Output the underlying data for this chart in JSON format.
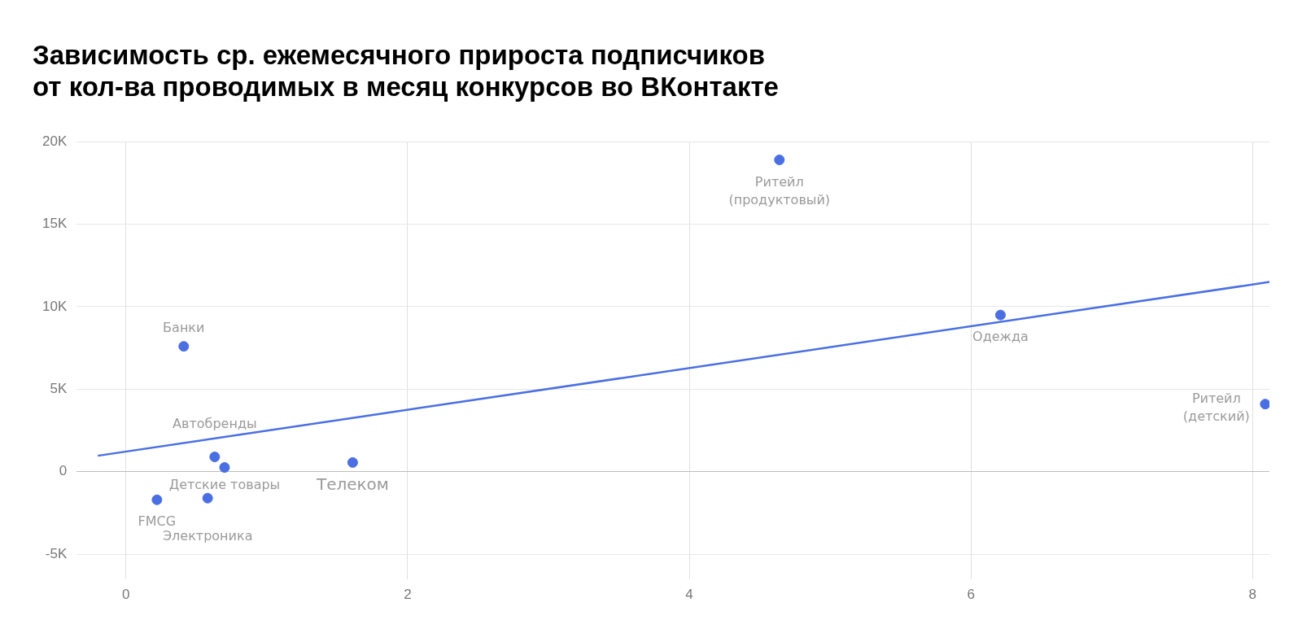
{
  "chart_data": {
    "type": "scatter",
    "title": "Зависимость ср. ежемесячного прироста подписчиков\nот кол-ва проводимых в месяц конкурсов во ВКонтакте",
    "series": [
      {
        "marker": "circle",
        "color": "#4a6fe3",
        "x": [
          0.41,
          0.63,
          0.7,
          1.61,
          0.22,
          0.58,
          4.64,
          6.21,
          8.09
        ],
        "values": [
          7600,
          900,
          260,
          560,
          -1700,
          -1600,
          18900,
          9500,
          4100
        ]
      },
      {
        "type": "line",
        "marker": "none",
        "color": "#4a6fe3",
        "x": [
          -0.2,
          8.12
        ],
        "values": [
          970,
          11500
        ]
      }
    ],
    "annotations": [
      {
        "text": "Банки",
        "x": 0.41,
        "y": 7600
      },
      {
        "text": "Автобренды",
        "x": 0.63,
        "y": 900
      },
      {
        "text": "Детские товары",
        "x": 0.7,
        "y": 260
      },
      {
        "text": "Телеком",
        "x": 1.61,
        "y": 560
      },
      {
        "text": "FMCG",
        "x": 0.22,
        "y": -1700
      },
      {
        "text": "Электроника",
        "x": 0.58,
        "y": -1600
      },
      {
        "text": "Ритейл\n(продуктовый)",
        "x": 4.64,
        "y": 18900
      },
      {
        "text": "Одежда",
        "x": 6.21,
        "y": 9500
      },
      {
        "text": "Ритейл\n(детский)",
        "x": 8.09,
        "y": 4100
      }
    ],
    "xlim": [
      -0.35,
      8.12
    ],
    "xticks": [
      0,
      2,
      4,
      6,
      8
    ],
    "ylim": [
      -6500,
      20000
    ],
    "yticks": [
      {
        "value": -5000,
        "label": "-5K"
      },
      0,
      {
        "value": 5000,
        "label": "5K"
      },
      {
        "value": 10000,
        "label": "10K"
      },
      {
        "value": 15000,
        "label": "15K"
      },
      {
        "value": 20000,
        "label": "20K"
      }
    ],
    "grid": true,
    "legend": false,
    "line_style": "solid"
  }
}
